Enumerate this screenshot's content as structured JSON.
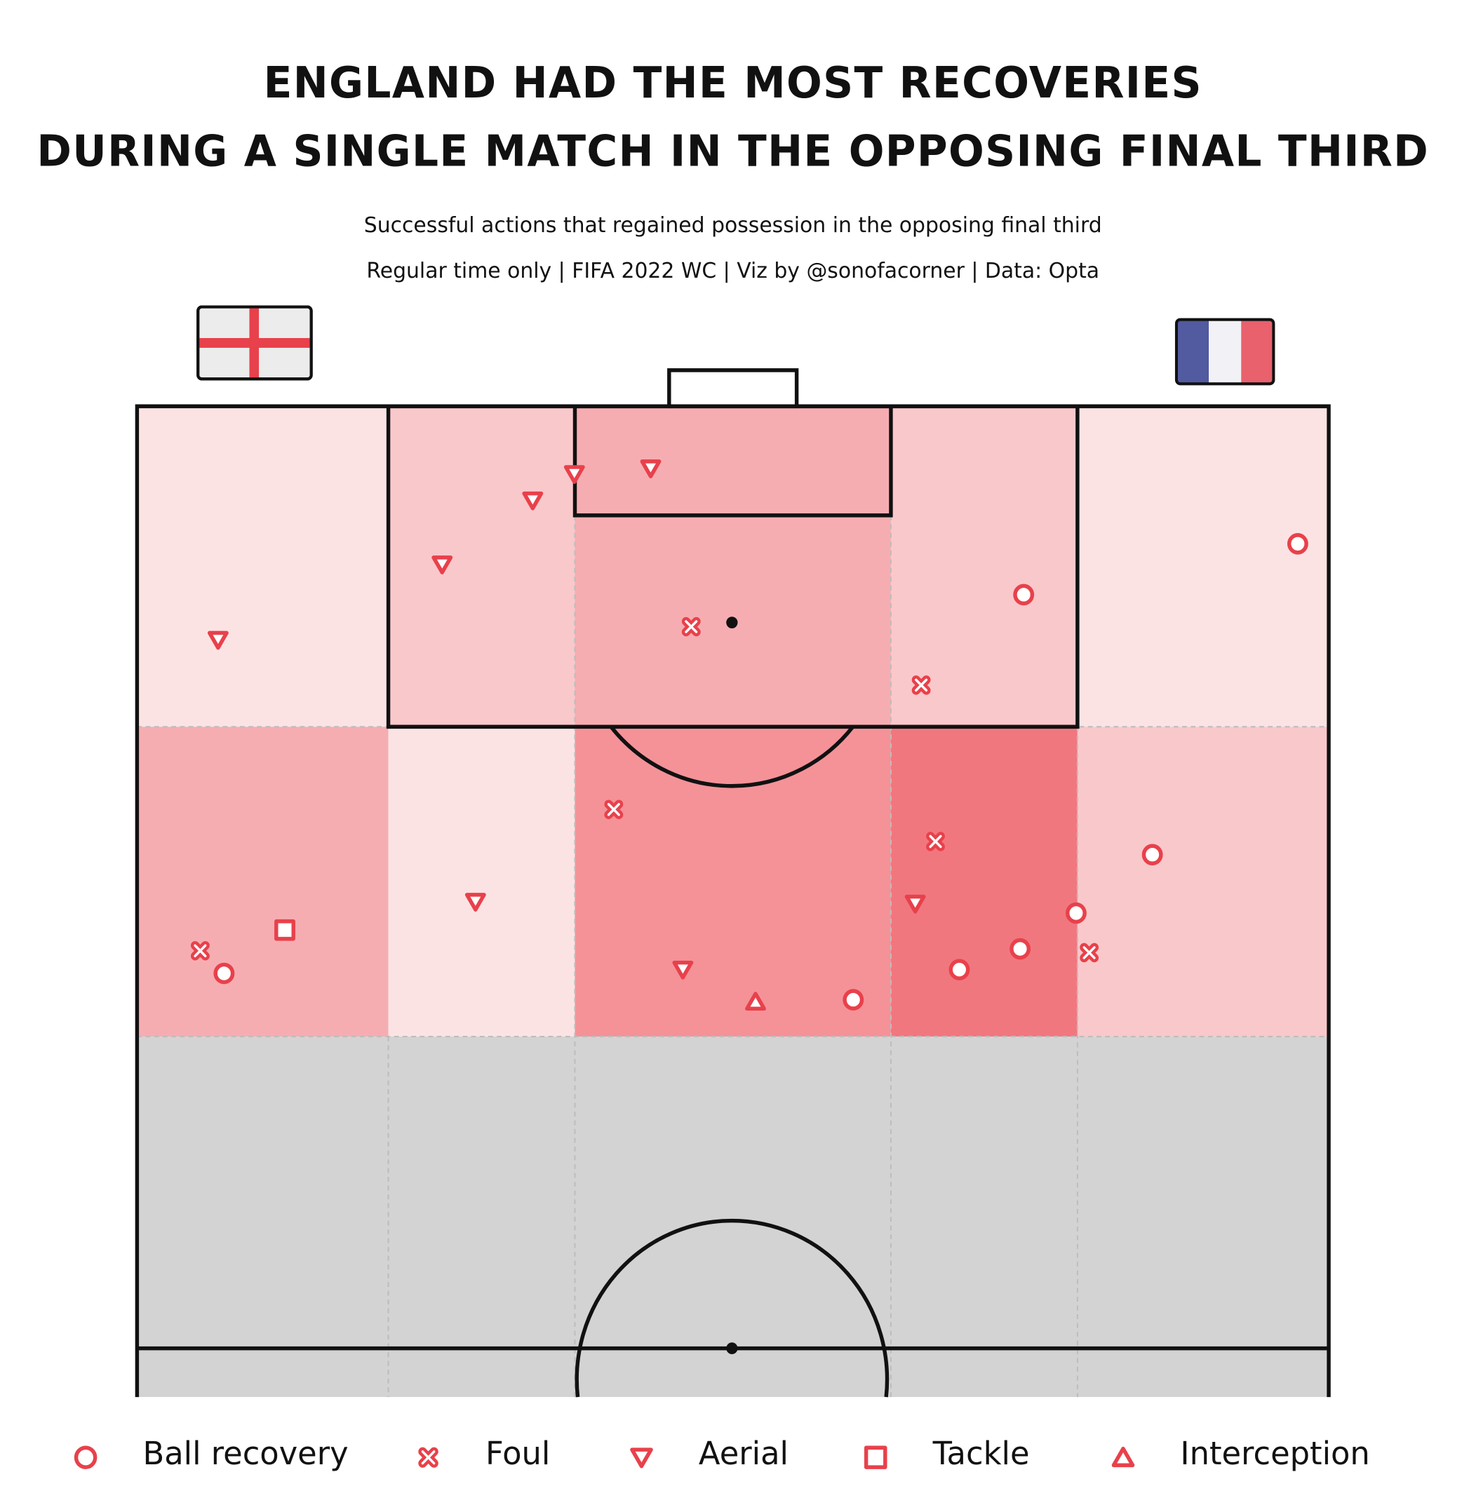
{
  "chart_data": {
    "type": "pitch-scatter",
    "title": [
      "ENGLAND HAD THE MOST RECOVERIES",
      "DURING A SINGLE MATCH IN THE OPPOSING FINAL THIRD"
    ],
    "subtitle": "Successful actions that regained possession in the opposing final third",
    "credits": "Regular time only | FIFA 2022 WC | Viz by @sonofacorner | Data: Opta",
    "xlim": [
      0,
      100
    ],
    "ylim": [
      50,
      100
    ],
    "zones": {
      "values": [
        [
          1,
          2,
          3,
          2,
          1
        ],
        [
          3,
          1,
          4,
          5,
          2
        ]
      ],
      "color_min": "#fbe3e4",
      "color_max": "#f1777f"
    },
    "series": [
      {
        "name": "Ball recovery",
        "marker": "circle",
        "color": "#e8414b",
        "x": [
          97.4,
          74.4,
          85.2,
          78.8,
          74.1,
          69.0,
          60.1,
          7.3
        ],
        "y": [
          92.7,
          90.0,
          76.2,
          73.1,
          71.2,
          70.1,
          68.5,
          69.9
        ]
      },
      {
        "name": "Foul",
        "marker": "x",
        "color": "#e8414b",
        "x": [
          46.5,
          65.8,
          40.0,
          67.0,
          5.3,
          79.9
        ],
        "y": [
          88.3,
          85.2,
          78.6,
          76.9,
          71.1,
          71.0
        ]
      },
      {
        "name": "Aerial",
        "marker": "triangle-down",
        "color": "#e8414b",
        "x": [
          6.8,
          25.6,
          33.2,
          36.7,
          43.1,
          28.4,
          45.8,
          65.3
        ],
        "y": [
          87.6,
          91.6,
          95.0,
          96.4,
          96.7,
          73.7,
          70.1,
          73.6
        ]
      },
      {
        "name": "Tackle",
        "marker": "square",
        "color": "#e8414b",
        "x": [
          12.4
        ],
        "y": [
          72.2
        ]
      },
      {
        "name": "Interception",
        "marker": "triangle-up",
        "color": "#e8414b",
        "x": [
          51.9
        ],
        "y": [
          68.4
        ]
      }
    ]
  }
}
